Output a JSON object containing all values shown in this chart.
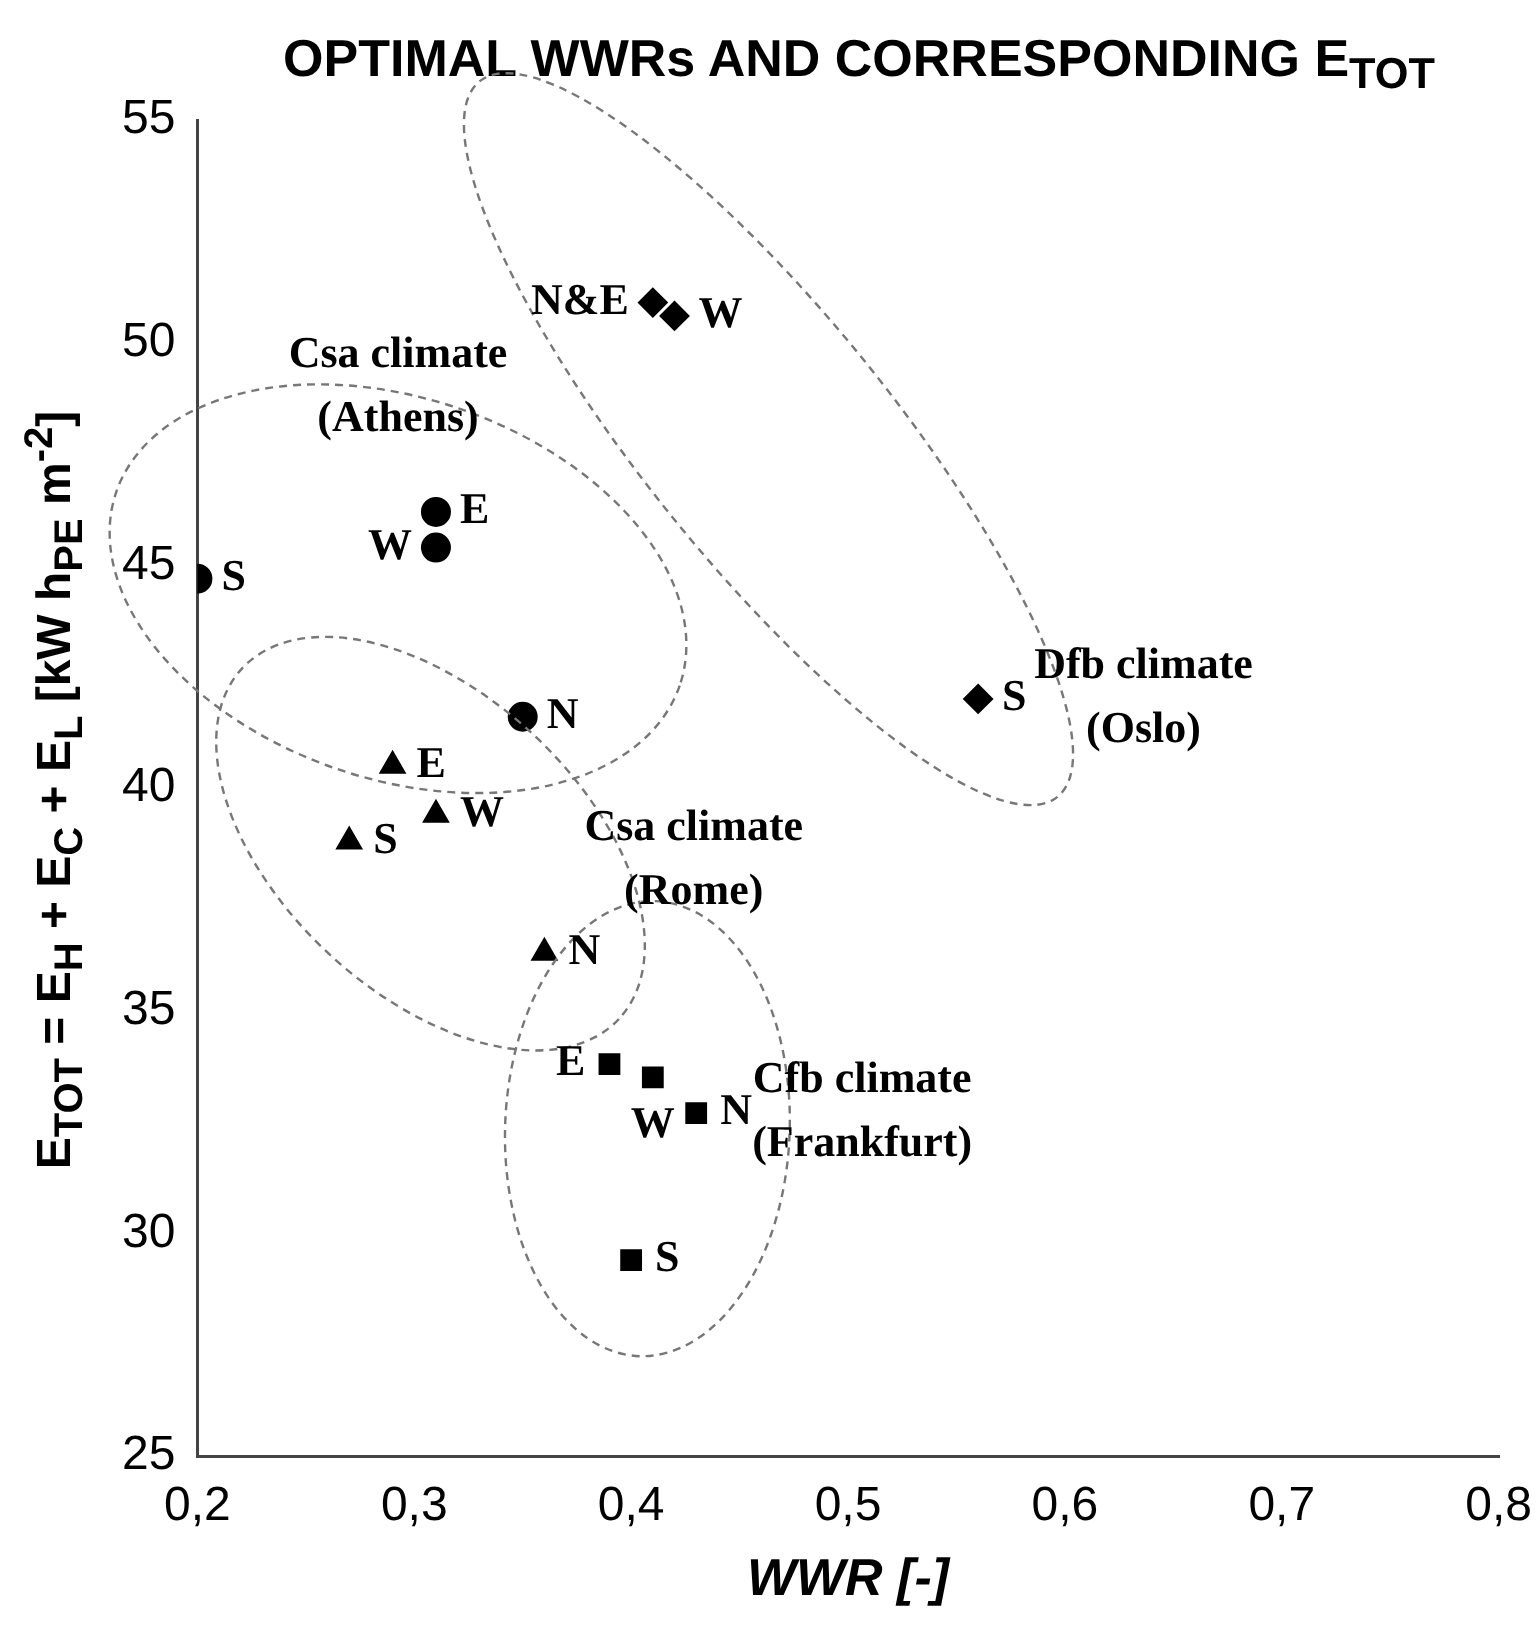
{
  "chart_data": {
    "type": "scatter",
    "title": "OPTIMAL WWRs AND CORRESPONDING E$_{TOT}$",
    "xlabel": "WWR [-]",
    "ylabel": "E$_{TOT}$ = E$_{H}$ + E$_{C}$ + E$_{L}$ [kW h$_{PE}$ m$^{-2}$]",
    "xlim": [
      0.2,
      0.8
    ],
    "xticks": [
      {
        "value": 0.2,
        "label": "0,2"
      },
      {
        "value": 0.3,
        "label": "0,3"
      },
      {
        "value": 0.4,
        "label": "0,4"
      },
      {
        "value": 0.5,
        "label": "0,5"
      },
      {
        "value": 0.6,
        "label": "0,6"
      },
      {
        "value": 0.7,
        "label": "0,7"
      },
      {
        "value": 0.8,
        "label": "0,8"
      }
    ],
    "ylim": [
      25,
      55
    ],
    "yticks": [
      25,
      30,
      35,
      40,
      45,
      50,
      55
    ],
    "grid": false,
    "legend": false,
    "series": [
      {
        "name": "Csa climate (Athens)",
        "color": "#000000",
        "marker": "circle",
        "x": [
          0.2,
          0.31,
          0.31,
          0.35
        ],
        "values": [
          44.7,
          46.2,
          45.4,
          41.6
        ]
      },
      {
        "name": "Csa climate (Rome)",
        "color": "#000000",
        "marker": "triangle",
        "x": [
          0.29,
          0.31,
          0.27,
          0.36
        ],
        "values": [
          40.5,
          39.4,
          38.8,
          36.3
        ]
      },
      {
        "name": "Dfb climate (Oslo)",
        "color": "#000000",
        "marker": "diamond",
        "x": [
          0.41,
          0.42,
          0.56
        ],
        "values": [
          50.9,
          50.6,
          42.0
        ]
      },
      {
        "name": "Cfb climate (Frankfurt)",
        "color": "#000000",
        "marker": "square",
        "x": [
          0.39,
          0.41,
          0.43,
          0.4
        ],
        "values": [
          33.8,
          33.5,
          32.7,
          29.4
        ]
      }
    ],
    "annotations": [
      {
        "text": "S",
        "x": 0.2,
        "y": 44.7
      },
      {
        "text": "E",
        "x": 0.31,
        "y": 46.2
      },
      {
        "text": "W",
        "x": 0.31,
        "y": 45.4
      },
      {
        "text": "N",
        "x": 0.35,
        "y": 41.6
      },
      {
        "text": "E",
        "x": 0.29,
        "y": 40.5
      },
      {
        "text": "W",
        "x": 0.31,
        "y": 39.4
      },
      {
        "text": "S",
        "x": 0.27,
        "y": 38.8
      },
      {
        "text": "N",
        "x": 0.36,
        "y": 36.3
      },
      {
        "text": "N&E",
        "x": 0.41,
        "y": 50.9
      },
      {
        "text": "W",
        "x": 0.42,
        "y": 50.6
      },
      {
        "text": "S",
        "x": 0.56,
        "y": 42.0
      },
      {
        "text": "E",
        "x": 0.39,
        "y": 33.8
      },
      {
        "text": "W",
        "x": 0.41,
        "y": 33.5
      },
      {
        "text": "N",
        "x": 0.43,
        "y": 32.7
      },
      {
        "text": "S",
        "x": 0.4,
        "y": 29.4
      }
    ]
  }
}
